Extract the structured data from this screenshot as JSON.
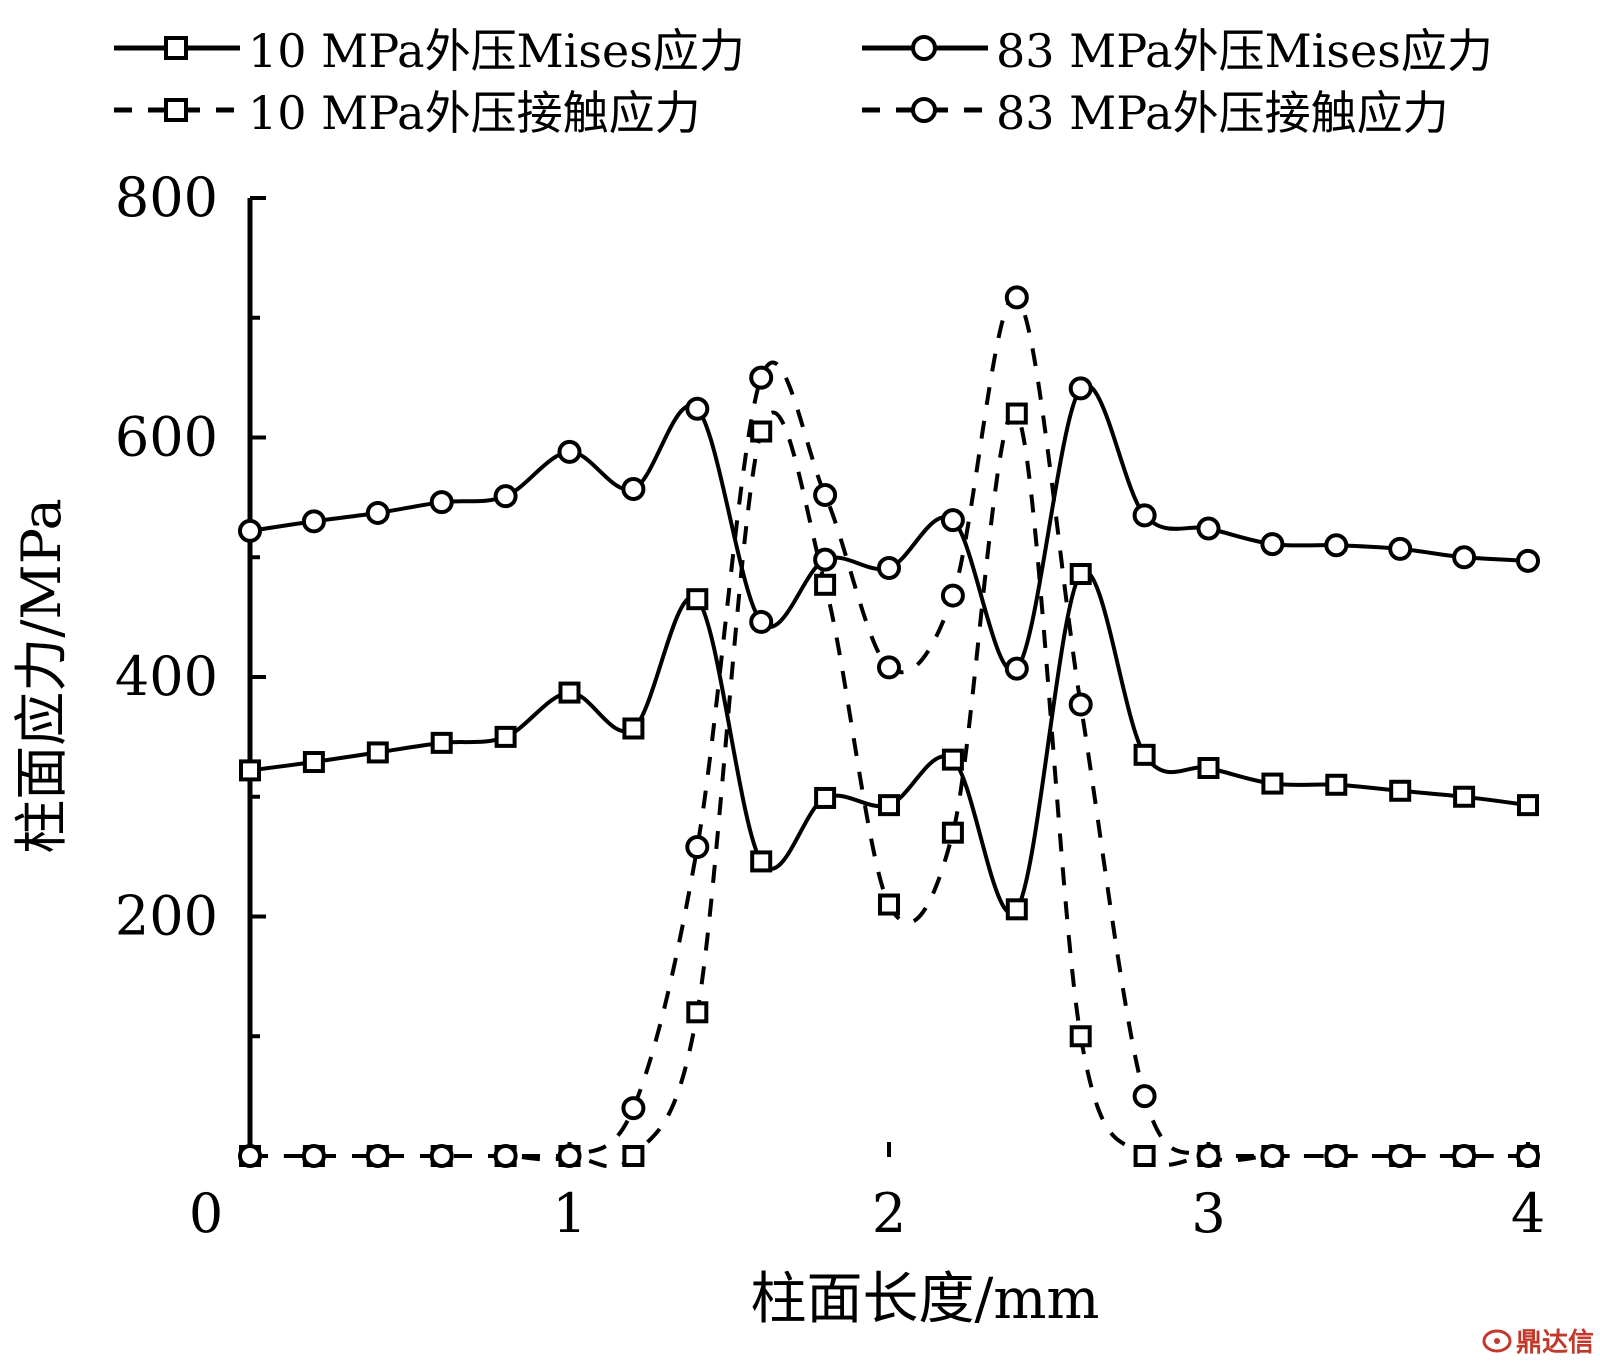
{
  "chart_data": {
    "type": "line",
    "title": "",
    "xlabel": "柱面长度/mm",
    "ylabel": "柱面应力/MPa",
    "xlim": [
      0,
      4
    ],
    "ylim": [
      0,
      800
    ],
    "xticks": [
      0,
      1,
      2,
      3,
      4
    ],
    "yticks": [
      200,
      400,
      600,
      800
    ],
    "x_tick_labels": [
      "0",
      "1",
      "2",
      "3",
      "4"
    ],
    "y_tick_labels": [
      "200",
      "400",
      "600",
      "800"
    ],
    "legend_position": "top",
    "grid": false,
    "series": [
      {
        "name": "10 MPa外压Mises应力",
        "line_style": "solid",
        "marker": "square",
        "color": "#000000",
        "points": [
          [
            0,
            322
          ],
          [
            0.2,
            329
          ],
          [
            0.4,
            337
          ],
          [
            0.6,
            345
          ],
          [
            0.8,
            350
          ],
          [
            1.0,
            387
          ],
          [
            1.2,
            357
          ],
          [
            1.4,
            465
          ],
          [
            1.6,
            246
          ],
          [
            1.8,
            299
          ],
          [
            2.0,
            293
          ],
          [
            2.2,
            331
          ],
          [
            2.4,
            206
          ],
          [
            2.6,
            486
          ],
          [
            2.8,
            335
          ],
          [
            3.0,
            324
          ],
          [
            3.2,
            311
          ],
          [
            3.4,
            310
          ],
          [
            3.6,
            305
          ],
          [
            3.8,
            300
          ],
          [
            4.0,
            293
          ]
        ]
      },
      {
        "name": "83 MPa外压Mises应力",
        "line_style": "solid",
        "marker": "circle",
        "color": "#000000",
        "points": [
          [
            0,
            522
          ],
          [
            0.2,
            530
          ],
          [
            0.4,
            537
          ],
          [
            0.6,
            546
          ],
          [
            0.8,
            551
          ],
          [
            1.0,
            588
          ],
          [
            1.2,
            557
          ],
          [
            1.4,
            624
          ],
          [
            1.6,
            446
          ],
          [
            1.8,
            498
          ],
          [
            2.0,
            491
          ],
          [
            2.2,
            531
          ],
          [
            2.4,
            407
          ],
          [
            2.6,
            641
          ],
          [
            2.8,
            535
          ],
          [
            3.0,
            524
          ],
          [
            3.2,
            511
          ],
          [
            3.4,
            510
          ],
          [
            3.6,
            507
          ],
          [
            3.8,
            500
          ],
          [
            4.0,
            497
          ]
        ]
      },
      {
        "name": "10 MPa外压接触应力",
        "line_style": "dashed",
        "marker": "square",
        "color": "#000000",
        "points": [
          [
            0,
            0
          ],
          [
            0.2,
            0
          ],
          [
            0.4,
            0
          ],
          [
            0.6,
            0
          ],
          [
            0.8,
            0
          ],
          [
            1.0,
            0
          ],
          [
            1.2,
            0
          ],
          [
            1.4,
            120
          ],
          [
            1.6,
            605
          ],
          [
            1.8,
            477
          ],
          [
            2.0,
            210
          ],
          [
            2.2,
            270
          ],
          [
            2.4,
            620
          ],
          [
            2.6,
            100
          ],
          [
            2.8,
            0
          ],
          [
            3.0,
            0
          ],
          [
            3.2,
            0
          ],
          [
            3.4,
            0
          ],
          [
            3.6,
            0
          ],
          [
            3.8,
            0
          ],
          [
            4.0,
            0
          ]
        ]
      },
      {
        "name": "83 MPa外压接触应力",
        "line_style": "dashed",
        "marker": "circle",
        "color": "#000000",
        "points": [
          [
            0,
            0
          ],
          [
            0.2,
            0
          ],
          [
            0.4,
            0
          ],
          [
            0.6,
            0
          ],
          [
            0.8,
            0
          ],
          [
            1.0,
            0
          ],
          [
            1.2,
            40
          ],
          [
            1.4,
            258
          ],
          [
            1.6,
            650
          ],
          [
            1.8,
            552
          ],
          [
            2.0,
            408
          ],
          [
            2.2,
            468
          ],
          [
            2.4,
            717
          ],
          [
            2.6,
            377
          ],
          [
            2.8,
            50
          ],
          [
            3.0,
            0
          ],
          [
            3.2,
            0
          ],
          [
            3.4,
            0
          ],
          [
            3.6,
            0
          ],
          [
            3.8,
            0
          ],
          [
            4.0,
            0
          ]
        ]
      }
    ]
  },
  "watermark": {
    "text": "鼎达信"
  }
}
